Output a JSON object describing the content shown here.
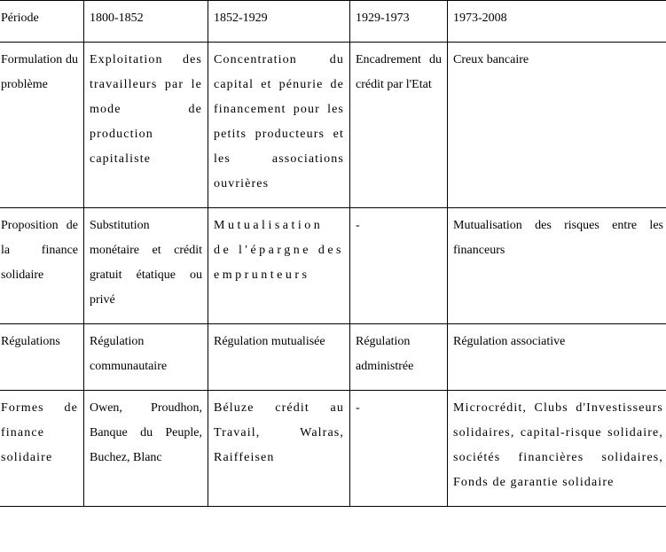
{
  "table": {
    "header": {
      "label": "Période",
      "periods": [
        "1800-1852",
        "1852-1929",
        "1929-1973",
        "1973-2008"
      ]
    },
    "rows": [
      {
        "label": "Formulation du problème",
        "cells": [
          "Exploitation des travailleurs par le mode de production capitaliste",
          "Concentration du capital et pénurie de financement pour les petits producteurs et les associations ouvrières",
          "Encadrement du crédit par l'Etat",
          "Creux bancaire"
        ]
      },
      {
        "label": "Proposition de la finance solidaire",
        "cells": [
          "Substitution monétaire et crédit gratuit étatique ou privé",
          "Mutualisation de l'épargne des emprunteurs",
          "-",
          "Mutualisation des risques entre les financeurs"
        ]
      },
      {
        "label": "Régulations",
        "cells": [
          "Régulation communautaire",
          "Régulation mutualisée",
          "Régulation administrée",
          "Régulation associative"
        ]
      },
      {
        "label": "Formes de finance solidaire",
        "cells": [
          "Owen, Proudhon, Banque du Peuple, Buchez, Blanc",
          "Béluze crédit au Travail, Walras, Raiffeisen",
          "-",
          "Microcrédit, Clubs d'Investisseurs solidaires, capital-risque solidaire, sociétés financières solidaires, Fonds de garantie solidaire"
        ]
      }
    ]
  },
  "style": {
    "font_family": "Times New Roman",
    "font_size_pt": 11,
    "line_height": 2.0,
    "border_color": "#000000",
    "background_color": "#ffffff",
    "text_color": "#000000"
  }
}
